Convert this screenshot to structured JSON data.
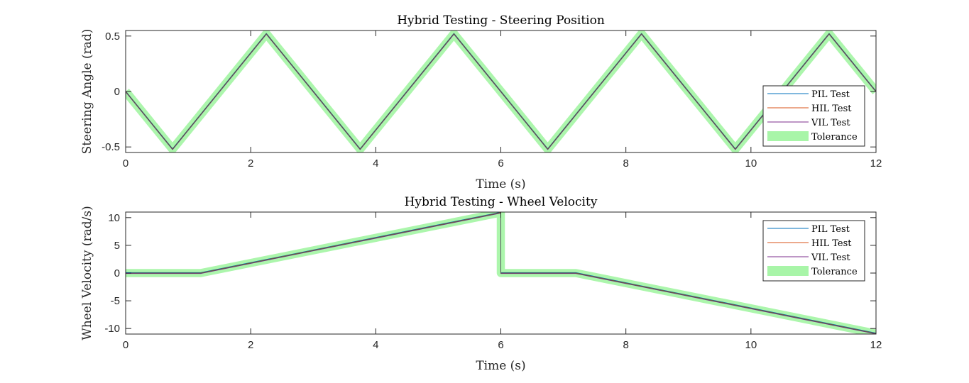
{
  "chart_data": [
    {
      "type": "line",
      "title": "Hybrid Testing - Steering Position",
      "xlabel": "Time (s)",
      "ylabel": "Steering Angle (rad)",
      "xlim": [
        0,
        12
      ],
      "ylim": [
        -0.55,
        0.55
      ],
      "xticks": [
        0,
        2,
        4,
        6,
        8,
        10,
        12
      ],
      "yticks": [
        -0.5,
        0,
        0.5
      ],
      "ytick_labels": [
        "-0.5",
        "0",
        "0.5"
      ],
      "grid": false,
      "legend_position": "bottom-right",
      "legend": [
        "PIL Test",
        "HIL Test",
        "VIL Test",
        "Tolerance"
      ],
      "tolerance_band": 0.02,
      "series": [
        {
          "name": "PIL Test",
          "color": "#0072BD",
          "x": [
            0,
            0.75,
            2.25,
            3.75,
            5.25,
            6.75,
            8.25,
            9.75,
            11.25,
            12
          ],
          "y": [
            0,
            -0.52,
            0.52,
            -0.52,
            0.52,
            -0.52,
            0.52,
            -0.52,
            0.52,
            0
          ]
        },
        {
          "name": "HIL Test",
          "color": "#D95319",
          "x": [
            0,
            0.75,
            2.25,
            3.75,
            5.25,
            6.75,
            8.25,
            9.75,
            11.25,
            12
          ],
          "y": [
            0,
            -0.52,
            0.52,
            -0.52,
            0.52,
            -0.52,
            0.52,
            -0.52,
            0.52,
            0
          ]
        },
        {
          "name": "VIL Test",
          "color": "#7E2F8E",
          "x": [
            0,
            0.75,
            2.25,
            3.75,
            5.25,
            6.75,
            8.25,
            9.75,
            11.25,
            12
          ],
          "y": [
            0,
            -0.52,
            0.52,
            -0.52,
            0.52,
            -0.52,
            0.52,
            -0.52,
            0.52,
            0
          ]
        },
        {
          "name": "Tolerance",
          "color": "#A8F5A8",
          "x": [
            0,
            0.75,
            2.25,
            3.75,
            5.25,
            6.75,
            8.25,
            9.75,
            11.25,
            12
          ],
          "y": [
            0,
            -0.52,
            0.52,
            -0.52,
            0.52,
            -0.52,
            0.52,
            -0.52,
            0.52,
            0
          ]
        }
      ]
    },
    {
      "type": "line",
      "title": "Hybrid Testing - Wheel Velocity",
      "xlabel": "Time (s)",
      "ylabel": "Wheel Velocity (rad/s)",
      "xlim": [
        0,
        12
      ],
      "ylim": [
        -11,
        11
      ],
      "xticks": [
        0,
        2,
        4,
        6,
        8,
        10,
        12
      ],
      "yticks": [
        -10,
        -5,
        0,
        5,
        10
      ],
      "ytick_labels": [
        "-10",
        "-5",
        "0",
        "5",
        "10"
      ],
      "grid": false,
      "legend_position": "top-right",
      "legend": [
        "PIL Test",
        "HIL Test",
        "VIL Test",
        "Tolerance"
      ],
      "tolerance_band": 0.35,
      "series": [
        {
          "name": "PIL Test",
          "color": "#0072BD",
          "x": [
            0,
            1.2,
            6,
            6,
            7.2,
            12
          ],
          "y": [
            0,
            0,
            10.9,
            0,
            0,
            -10.9
          ]
        },
        {
          "name": "HIL Test",
          "color": "#D95319",
          "x": [
            0,
            1.2,
            6,
            6,
            7.2,
            12
          ],
          "y": [
            0,
            0,
            10.9,
            0,
            0,
            -10.9
          ]
        },
        {
          "name": "VIL Test",
          "color": "#7E2F8E",
          "x": [
            0,
            1.2,
            6,
            6,
            7.2,
            12
          ],
          "y": [
            0,
            0,
            10.9,
            0,
            0,
            -10.9
          ]
        },
        {
          "name": "Tolerance",
          "color": "#A8F5A8",
          "x": [
            0,
            1.2,
            6,
            6,
            7.2,
            12
          ],
          "y": [
            0,
            0,
            10.9,
            0,
            0,
            -10.9
          ]
        }
      ]
    }
  ]
}
